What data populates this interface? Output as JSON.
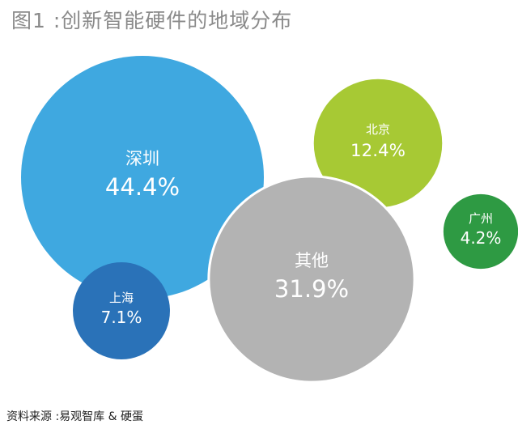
{
  "title": "图1 :创新智能硬件的地域分布",
  "source": "资料来源 :易观智库 & 硬蛋",
  "chart_data": {
    "type": "bubble",
    "unit": "%",
    "series": [
      {
        "name": "深圳",
        "value": 44.4,
        "label": "44.4%",
        "color": "#3fa8e0"
      },
      {
        "name": "北京",
        "value": 12.4,
        "label": "12.4%",
        "color": "#a7c934"
      },
      {
        "name": "广州",
        "value": 4.2,
        "label": "4.2%",
        "color": "#2e9a43"
      },
      {
        "name": "其他",
        "value": 31.9,
        "label": "31.9%",
        "color": "#b3b3b3"
      },
      {
        "name": "上海",
        "value": 7.1,
        "label": "7.1%",
        "color": "#2a72b8"
      }
    ]
  }
}
